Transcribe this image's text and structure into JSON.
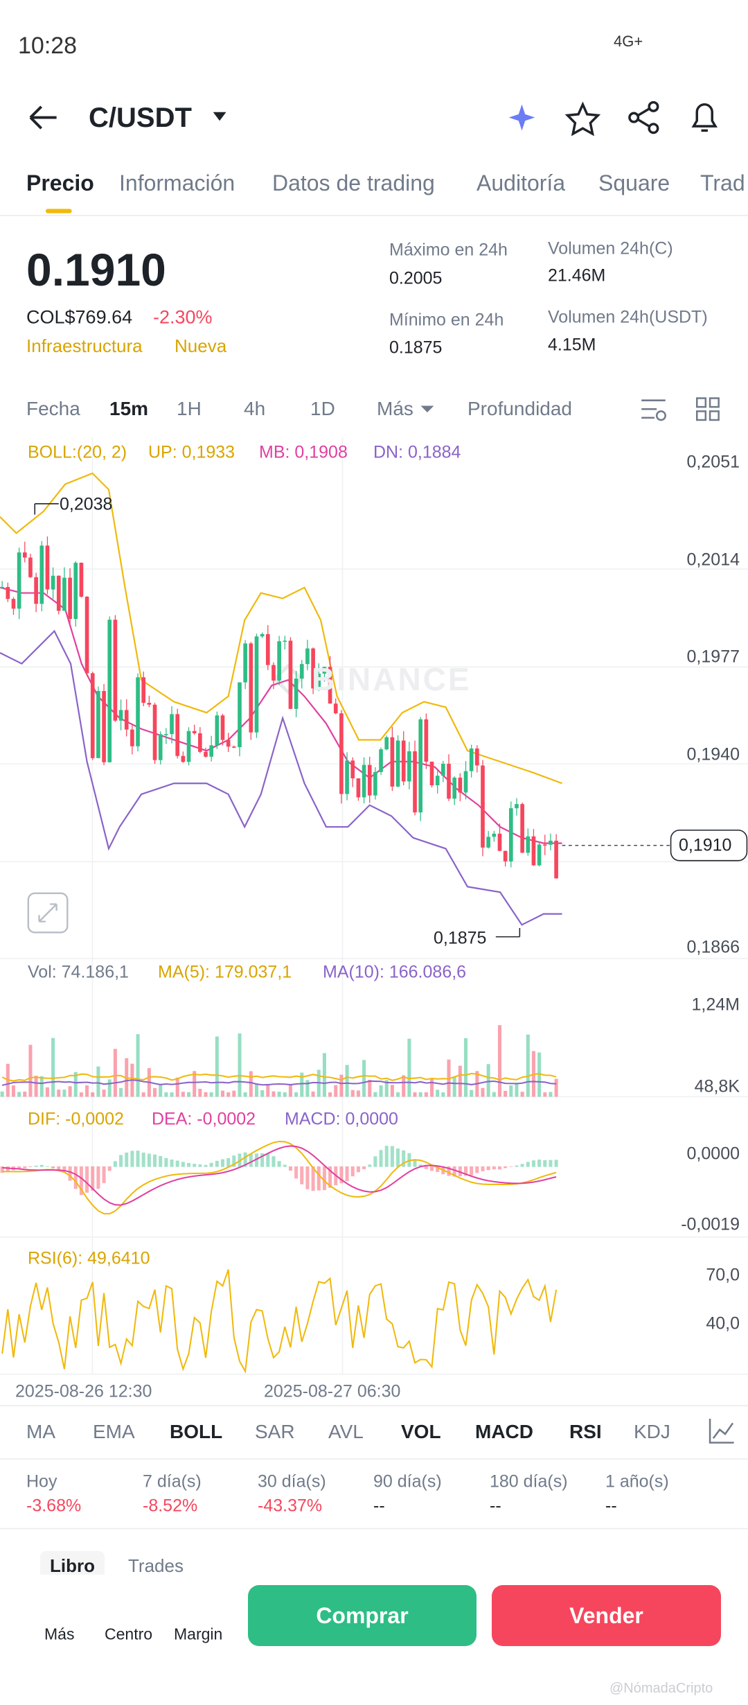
{
  "status": {
    "time": "10:28",
    "network": "4G+"
  },
  "header": {
    "title": "C/USDT"
  },
  "tabs": [
    "Precio",
    "Información",
    "Datos de trading",
    "Auditoría",
    "Square",
    "Trad"
  ],
  "price": {
    "last": "0.1910",
    "fiat": "COL$769.64",
    "change": "-2.30%",
    "tags": [
      "Infraestructura",
      "Nueva"
    ]
  },
  "stats": [
    {
      "label": "Máximo en 24h",
      "value": "0.2005"
    },
    {
      "label": "Volumen 24h(C)",
      "value": "21.46M"
    },
    {
      "label": "Mínimo en 24h",
      "value": "0.1875"
    },
    {
      "label": "Volumen 24h(USDT)",
      "value": "4.15M"
    }
  ],
  "intervals": [
    "Fecha",
    "15m",
    "1H",
    "4h",
    "1D",
    "Más",
    "Profundidad"
  ],
  "chart": {
    "boll": [
      "BOLL:(20, 2)",
      "UP: 0,1933",
      "MB: 0,1908",
      "DN: 0,1884"
    ],
    "price_axis": [
      "0,2051",
      "0,2014",
      "0,1977",
      "0,1940",
      "0,1866"
    ],
    "current": "0,1910",
    "high_marker": "0,2038",
    "low_marker": "0,1875",
    "watermark": "BINANCE",
    "vol": [
      "Vol: 74.186,1",
      "MA(5): 179.037,1",
      "MA(10): 166.086,6"
    ],
    "vol_axis": [
      "1,24M",
      "48,8K"
    ],
    "macd": [
      "DIF: -0,0002",
      "DEA: -0,0002",
      "MACD: 0,0000"
    ],
    "macd_axis": [
      "0,0000",
      "-0,0019"
    ],
    "rsi": "RSI(6): 49,6410",
    "rsi_axis": [
      "70,0",
      "40,0"
    ],
    "dates": [
      "2025-08-26 12:30",
      "2025-08-27 06:30"
    ]
  },
  "indicators": [
    "MA",
    "EMA",
    "BOLL",
    "SAR",
    "AVL",
    "VOL",
    "MACD",
    "RSI",
    "KDJ"
  ],
  "performance": [
    {
      "label": "Hoy",
      "value": "-3.68%"
    },
    {
      "label": "7 día(s)",
      "value": "-8.52%"
    },
    {
      "label": "30 día(s)",
      "value": "-43.37%"
    },
    {
      "label": "90 día(s)",
      "value": "--"
    },
    {
      "label": "180 día(s)",
      "value": "--"
    },
    {
      "label": "1 año(s)",
      "value": "--"
    }
  ],
  "book_tabs": [
    "Libro",
    "Trades"
  ],
  "bottom_nav": [
    "Más",
    "Centro",
    "Margin"
  ],
  "buttons": {
    "buy": "Comprar",
    "sell": "Vender"
  },
  "credit": "@NómadaCripto"
}
